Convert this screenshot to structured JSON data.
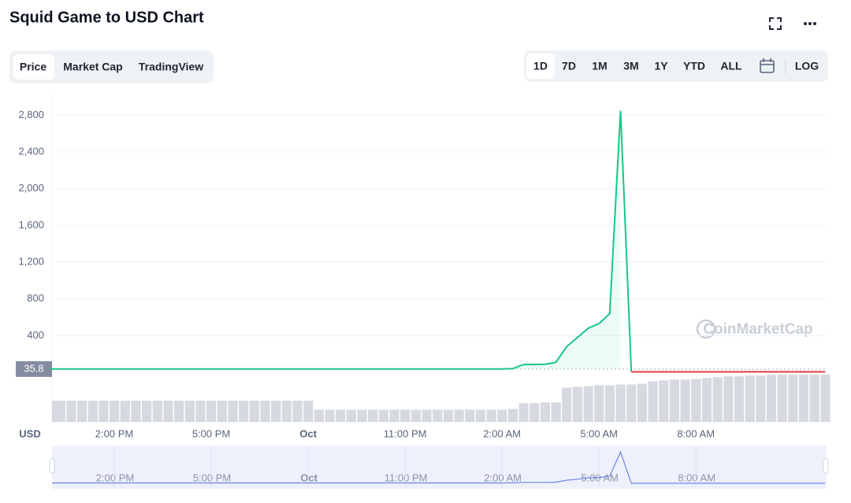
{
  "header": {
    "title": "Squid Game to USD Chart"
  },
  "tabs": [
    "Price",
    "Market Cap",
    "TradingView"
  ],
  "ranges": [
    "1D",
    "7D",
    "1M",
    "3M",
    "1Y",
    "YTD",
    "ALL"
  ],
  "log_button": "LOG",
  "currency": "USD",
  "watermark": "CoinMarketCap",
  "chart_data": {
    "type": "line",
    "categories": [
      null,
      null,
      null,
      null,
      null,
      null,
      "2:00 PM",
      null,
      null,
      null,
      null,
      null,
      null,
      null,
      null,
      "5:00 PM",
      null,
      null,
      null,
      null,
      null,
      null,
      null,
      null,
      "Oct",
      null,
      null,
      null,
      null,
      null,
      null,
      null,
      null,
      "11:00 PM",
      null,
      null,
      null,
      null,
      null,
      null,
      null,
      null,
      "2:00 AM",
      null,
      null,
      null,
      null,
      null,
      null,
      null,
      null,
      "5:00 AM",
      null,
      null,
      null,
      null,
      null,
      null,
      null,
      null,
      "8:00 AM",
      null,
      null,
      null,
      null,
      null,
      null,
      null,
      null,
      null,
      null,
      null,
      null
    ],
    "values": [
      35.8,
      35.8,
      35.8,
      35.8,
      36,
      36,
      36,
      36.2,
      36.2,
      36.5,
      36.5,
      36.5,
      36.5,
      36.5,
      36.5,
      36.5,
      36.5,
      36.5,
      36.5,
      36.5,
      36.5,
      36.5,
      36.5,
      36.5,
      36.5,
      36.5,
      36.5,
      36.5,
      36.5,
      36.5,
      36.5,
      36.5,
      36.5,
      36.5,
      36.5,
      36.5,
      36.5,
      36.5,
      36.5,
      36.5,
      36.5,
      36.5,
      36.5,
      40,
      85,
      86,
      88,
      110,
      280,
      380,
      480,
      530,
      640,
      2850,
      5,
      5,
      5,
      5,
      5,
      5,
      5,
      5,
      5,
      5,
      5,
      5,
      5,
      5,
      5,
      5,
      5,
      5,
      5
    ],
    "volume": [
      26,
      26,
      26,
      26,
      26,
      26,
      26,
      26,
      26,
      26,
      26,
      26,
      26,
      26,
      26,
      26,
      26,
      26,
      26,
      26,
      26,
      26,
      26,
      26,
      26,
      15,
      15,
      15,
      15,
      15,
      15,
      15,
      15,
      15,
      15,
      15,
      15,
      15,
      15,
      15,
      15,
      15,
      15,
      16,
      23,
      23,
      24,
      24,
      42,
      43,
      44,
      45,
      45,
      46,
      46,
      47,
      50,
      51,
      52,
      52,
      53,
      54,
      55,
      56,
      56,
      57,
      57,
      58,
      58,
      58,
      58,
      58,
      58
    ],
    "color": "#16c784",
    "down_color": "#ea3943",
    "baseline": 35.8,
    "ylim": [
      0,
      3000
    ],
    "yticks": [
      400,
      800,
      {
        "value": 1200,
        "label": "1,200"
      },
      {
        "value": 1600,
        "label": "1,600"
      },
      {
        "value": 2000,
        "label": "2,000"
      },
      {
        "value": 2400,
        "label": "2,400"
      },
      {
        "value": 2800,
        "label": "2,800"
      }
    ],
    "grid": true
  }
}
